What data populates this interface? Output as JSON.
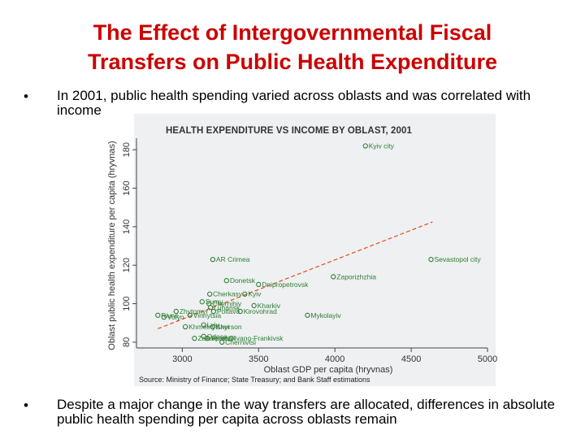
{
  "slide": {
    "title_line1": "The Effect of Intergovernmental Fiscal",
    "title_line2": "Transfers on Public Health Expenditure",
    "bullet_marker": "•",
    "bullet1": "In 2001, public health spending varied across oblasts and was correlated with income",
    "bullet2": "Despite a major change in the way transfers are allocated, differences in absolute public health spending per capita across oblasts remain"
  },
  "chart_data": {
    "type": "scatter",
    "title": "HEALTH EXPENDITURE VS INCOME BY OBLAST, 2001",
    "xlabel": "Oblast GDP per capita (hryvnas)",
    "ylabel": "Oblast public health expenditure per capita (hryvnas)",
    "source": "Source: Ministry of Finance; State Treasury; and Bank Staff estimations",
    "xlim": [
      2700,
      5000
    ],
    "ylim": [
      77,
      186
    ],
    "xticks": [
      3000,
      3500,
      4000,
      4500,
      5000
    ],
    "xtick_labels": [
      "3000",
      "3500",
      "4000",
      "4500",
      "5000"
    ],
    "yticks": [
      80,
      100,
      120,
      140,
      160,
      180
    ],
    "ytick_labels": [
      "80",
      "100",
      "120",
      "140",
      "160",
      "180"
    ],
    "grid": false,
    "colors": {
      "points": "#2e7d32",
      "fit_line": "#e64a19",
      "panel": "#eef0f2"
    },
    "fit_line": {
      "style": "dashed",
      "x": [
        2840,
        4640
      ],
      "y": [
        87,
        142.5
      ]
    },
    "points": [
      {
        "label": "Kyiv city",
        "x": 4200,
        "y": 182
      },
      {
        "label": "Sevastopol city",
        "x": 4630,
        "y": 123
      },
      {
        "label": "AR Crimea",
        "x": 3200,
        "y": 123
      },
      {
        "label": "Zaporizhzhia",
        "x": 3990,
        "y": 114
      },
      {
        "label": "Donetsk",
        "x": 3290,
        "y": 112
      },
      {
        "label": "Dnipropetrovsk",
        "x": 3500,
        "y": 110
      },
      {
        "label": "Cherkasy",
        "x": 3180,
        "y": 105
      },
      {
        "label": "Kyiv",
        "x": 3410,
        "y": 105
      },
      {
        "label": "Sumy",
        "x": 3130,
        "y": 101
      },
      {
        "label": "Chernihiv",
        "x": 3175,
        "y": 100
      },
      {
        "label": "Kharkiv",
        "x": 3470,
        "y": 99
      },
      {
        "label": "Luhansk",
        "x": 3185,
        "y": 98
      },
      {
        "label": "Zhytomyr",
        "x": 2960,
        "y": 96
      },
      {
        "label": "Poltava",
        "x": 3205,
        "y": 96
      },
      {
        "label": "Kirovohrad",
        "x": 3380,
        "y": 96
      },
      {
        "label": "Mykolayiv",
        "x": 3820,
        "y": 94
      },
      {
        "label": "Rivne",
        "x": 2840,
        "y": 94
      },
      {
        "label": "Vinnytsia",
        "x": 3050,
        "y": 94
      },
      {
        "label": "Volyn",
        "x": 2880,
        "y": 93
      },
      {
        "label": "Lviv",
        "x": 3140,
        "y": 89
      },
      {
        "label": "Khmelnytskyi",
        "x": 3020,
        "y": 88
      },
      {
        "label": "Kherson",
        "x": 3200,
        "y": 88
      },
      {
        "label": "Odesa",
        "x": 3140,
        "y": 83
      },
      {
        "label": "Zakarpattia",
        "x": 3080,
        "y": 82
      },
      {
        "label": "Ternopil",
        "x": 3165,
        "y": 82
      },
      {
        "label": "Ivano-Frankivsk",
        "x": 3320,
        "y": 82
      },
      {
        "label": "Chernivtsi",
        "x": 3260,
        "y": 80
      }
    ]
  }
}
